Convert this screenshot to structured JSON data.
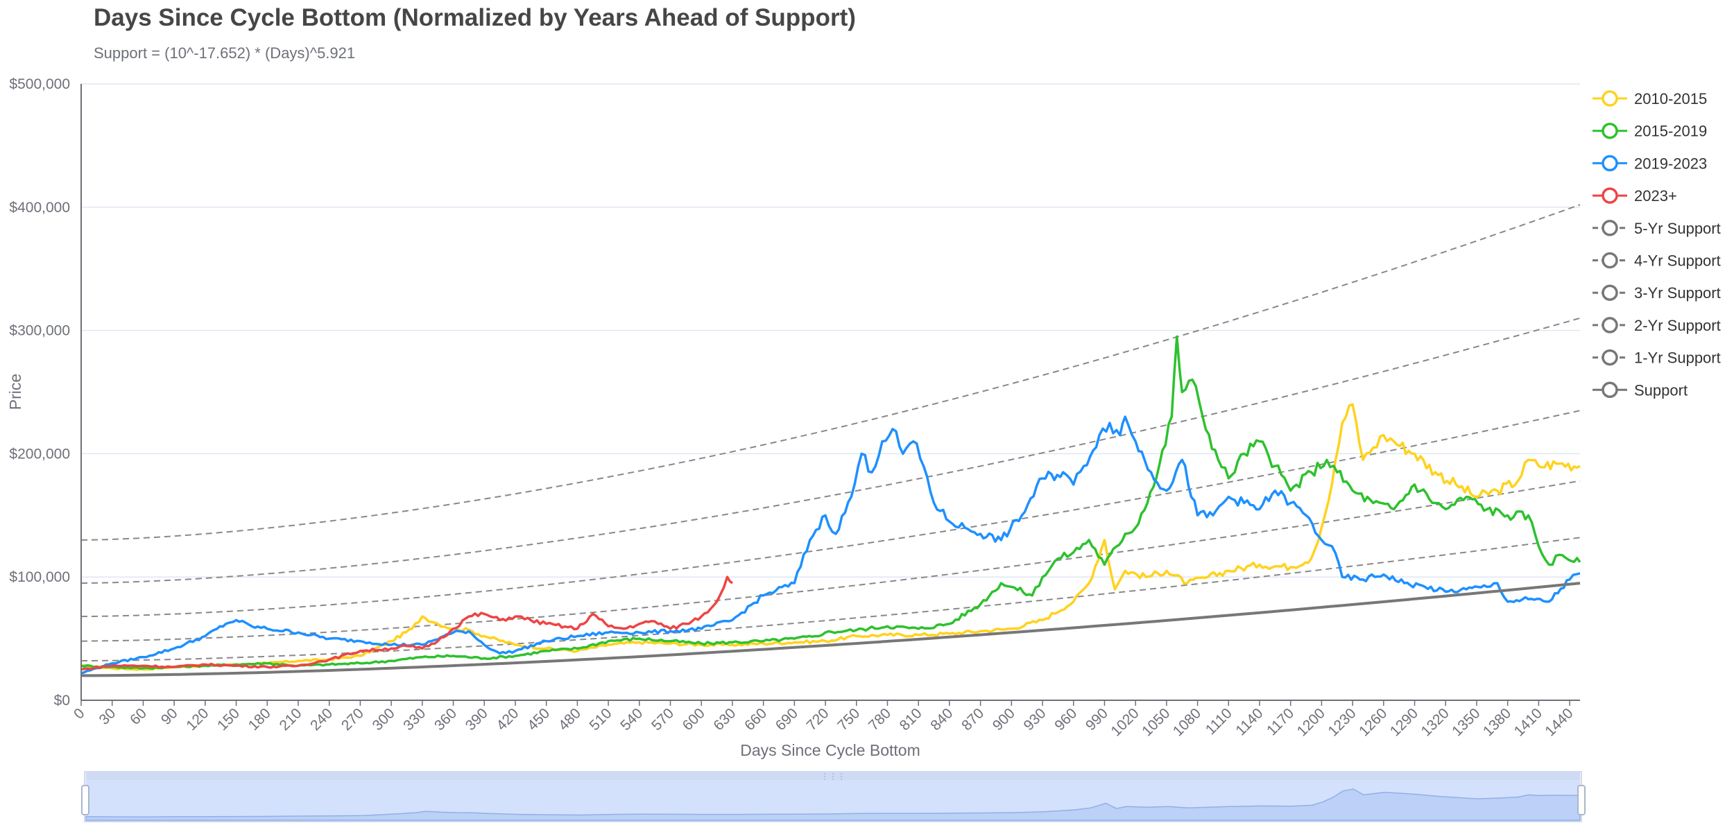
{
  "chart_data": {
    "type": "line",
    "title": "Days Since Cycle Bottom (Normalized by Years Ahead of Support)",
    "subtitle": "Support = (10^-17.652) * (Days)^5.921",
    "xlabel": "Days Since Cycle Bottom",
    "ylabel": "Price",
    "xlim": [
      0,
      1450
    ],
    "ylim": [
      0,
      500000
    ],
    "x_ticks": [
      0,
      30,
      60,
      90,
      120,
      150,
      180,
      210,
      240,
      270,
      300,
      330,
      360,
      390,
      420,
      450,
      480,
      510,
      540,
      570,
      600,
      630,
      660,
      690,
      720,
      750,
      780,
      810,
      840,
      870,
      900,
      930,
      960,
      990,
      1020,
      1050,
      1080,
      1110,
      1140,
      1170,
      1200,
      1230,
      1260,
      1290,
      1320,
      1350,
      1380,
      1410,
      1440
    ],
    "y_ticks": [
      "$0",
      "$100,000",
      "$200,000",
      "$300,000",
      "$400,000",
      "$500,000"
    ],
    "y_tick_values": [
      0,
      100000,
      200000,
      300000,
      400000,
      500000
    ],
    "grid": "horizontal",
    "legend_position": "right",
    "series": [
      {
        "name": "2010-2015",
        "color": "#ffd21e",
        "style": "solid",
        "x": [
          0,
          30,
          60,
          90,
          120,
          150,
          180,
          210,
          240,
          270,
          300,
          320,
          330,
          345,
          360,
          375,
          390,
          420,
          450,
          480,
          510,
          540,
          570,
          600,
          630,
          660,
          690,
          720,
          750,
          780,
          810,
          840,
          870,
          900,
          930,
          960,
          975,
          990,
          1000,
          1010,
          1030,
          1050,
          1070,
          1090,
          1110,
          1140,
          1170,
          1190,
          1200,
          1210,
          1220,
          1230,
          1240,
          1250,
          1260,
          1270,
          1290,
          1310,
          1330,
          1350,
          1370,
          1390,
          1400,
          1410,
          1430,
          1450
        ],
        "y": [
          28000,
          26000,
          25000,
          27000,
          28000,
          29000,
          30000,
          32000,
          33000,
          36000,
          48000,
          58000,
          68000,
          62000,
          58000,
          57000,
          52000,
          45000,
          42000,
          40000,
          45000,
          47000,
          46000,
          45000,
          45000,
          46000,
          47000,
          48000,
          52000,
          53000,
          53000,
          54000,
          56000,
          58000,
          65000,
          80000,
          95000,
          130000,
          90000,
          105000,
          100000,
          105000,
          95000,
          100000,
          105000,
          110000,
          108000,
          115000,
          140000,
          175000,
          225000,
          240000,
          195000,
          205000,
          215000,
          210000,
          200000,
          185000,
          175000,
          165000,
          170000,
          178000,
          195000,
          190000,
          192000,
          190000
        ]
      },
      {
        "name": "2015-2019",
        "color": "#2ec12e",
        "style": "solid",
        "x": [
          0,
          30,
          60,
          90,
          120,
          150,
          180,
          210,
          240,
          270,
          300,
          330,
          360,
          390,
          420,
          450,
          480,
          510,
          540,
          570,
          600,
          630,
          660,
          690,
          710,
          720,
          750,
          780,
          810,
          840,
          870,
          890,
          900,
          920,
          930,
          945,
          960,
          975,
          990,
          1010,
          1020,
          1040,
          1055,
          1060,
          1065,
          1075,
          1085,
          1100,
          1110,
          1125,
          1140,
          1155,
          1170,
          1190,
          1205,
          1215,
          1230,
          1250,
          1270,
          1290,
          1310,
          1320,
          1340,
          1360,
          1380,
          1400,
          1410,
          1420,
          1430,
          1450
        ],
        "y": [
          28000,
          27000,
          26000,
          27000,
          28000,
          29000,
          30000,
          28000,
          29000,
          30000,
          32000,
          35000,
          36000,
          34000,
          36000,
          40000,
          42000,
          48000,
          50000,
          48000,
          46000,
          47000,
          48000,
          50000,
          52000,
          55000,
          57000,
          60000,
          58000,
          62000,
          78000,
          95000,
          92000,
          85000,
          100000,
          115000,
          120000,
          130000,
          110000,
          135000,
          140000,
          180000,
          230000,
          295000,
          250000,
          260000,
          230000,
          195000,
          180000,
          200000,
          210000,
          190000,
          170000,
          185000,
          195000,
          185000,
          170000,
          160000,
          155000,
          175000,
          160000,
          155000,
          165000,
          155000,
          150000,
          150000,
          125000,
          110000,
          118000,
          112000
        ]
      },
      {
        "name": "2019-2023",
        "color": "#1e90ff",
        "style": "solid",
        "x": [
          0,
          30,
          60,
          90,
          120,
          140,
          150,
          165,
          180,
          210,
          240,
          270,
          300,
          330,
          360,
          375,
          390,
          405,
          420,
          450,
          480,
          510,
          540,
          570,
          600,
          630,
          660,
          690,
          705,
          720,
          730,
          745,
          755,
          765,
          775,
          785,
          795,
          805,
          815,
          825,
          840,
          855,
          870,
          890,
          910,
          930,
          950,
          960,
          970,
          985,
          995,
          1005,
          1010,
          1020,
          1035,
          1050,
          1065,
          1080,
          1095,
          1110,
          1125,
          1140,
          1155,
          1170,
          1185,
          1200,
          1210,
          1220,
          1240,
          1260,
          1280,
          1300,
          1320,
          1340,
          1360,
          1370,
          1380,
          1400,
          1420,
          1440,
          1450
        ],
        "y": [
          22000,
          30000,
          35000,
          42000,
          52000,
          62000,
          65000,
          60000,
          58000,
          55000,
          50000,
          48000,
          45000,
          45000,
          55000,
          56000,
          45000,
          38000,
          40000,
          48000,
          52000,
          55000,
          55000,
          56000,
          58000,
          65000,
          85000,
          95000,
          130000,
          150000,
          135000,
          165000,
          200000,
          185000,
          210000,
          220000,
          200000,
          210000,
          190000,
          160000,
          145000,
          140000,
          135000,
          130000,
          150000,
          180000,
          185000,
          175000,
          190000,
          215000,
          225000,
          215000,
          230000,
          210000,
          185000,
          170000,
          195000,
          150000,
          150000,
          165000,
          160000,
          155000,
          170000,
          160000,
          150000,
          130000,
          125000,
          100000,
          98000,
          102000,
          95000,
          92000,
          88000,
          90000,
          92000,
          95000,
          80000,
          82000,
          80000,
          98000,
          103000
        ]
      },
      {
        "name": "2023+",
        "color": "#ee4444",
        "style": "solid",
        "x": [
          0,
          30,
          60,
          90,
          120,
          150,
          180,
          210,
          240,
          270,
          300,
          315,
          330,
          345,
          360,
          375,
          390,
          405,
          420,
          435,
          450,
          480,
          495,
          510,
          525,
          540,
          555,
          570,
          585,
          600,
          615,
          625,
          630
        ],
        "y": [
          25000,
          28000,
          28000,
          27000,
          29000,
          28000,
          27000,
          28000,
          33000,
          40000,
          42000,
          44000,
          42000,
          48000,
          58000,
          68000,
          70000,
          65000,
          68000,
          65000,
          62000,
          58000,
          70000,
          60000,
          58000,
          62000,
          64000,
          58000,
          62000,
          68000,
          80000,
          100000,
          95000
        ]
      }
    ],
    "support": {
      "name": "Support",
      "color": "#777777",
      "style": "solid",
      "y_at_0": 20000,
      "y_at_1450": 95000
    },
    "support_bands": [
      {
        "name": "5-Yr Support",
        "color": "#888888",
        "style": "dashed",
        "y_at_0": 130000,
        "y_at_1450": 402000
      },
      {
        "name": "4-Yr Support",
        "color": "#888888",
        "style": "dashed",
        "y_at_0": 95000,
        "y_at_1450": 310000
      },
      {
        "name": "3-Yr Support",
        "color": "#888888",
        "style": "dashed",
        "y_at_0": 68000,
        "y_at_1450": 235000
      },
      {
        "name": "2-Yr Support",
        "color": "#888888",
        "style": "dashed",
        "y_at_0": 48000,
        "y_at_1450": 178000
      },
      {
        "name": "1-Yr Support",
        "color": "#888888",
        "style": "dashed",
        "y_at_0": 32000,
        "y_at_1450": 132000
      }
    ],
    "data_zoom": {
      "start_percent": 0,
      "end_percent": 100
    }
  }
}
